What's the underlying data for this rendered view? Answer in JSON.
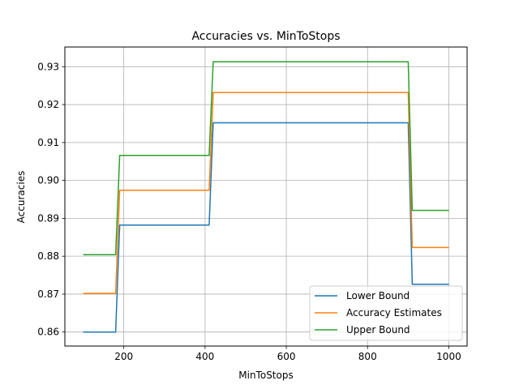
{
  "chart_data": {
    "type": "line",
    "title": "Accuracies vs. MinToStops",
    "xlabel": "MinToStops",
    "ylabel": "Accuracies",
    "xlim": [
      55,
      1045
    ],
    "ylim": [
      0.8563,
      0.9352
    ],
    "xticks": [
      200,
      400,
      600,
      800,
      1000
    ],
    "xtick_labels": [
      "200",
      "400",
      "600",
      "800",
      "1000"
    ],
    "yticks": [
      0.86,
      0.87,
      0.88,
      0.89,
      0.9,
      0.91,
      0.92,
      0.93
    ],
    "ytick_labels": [
      "0.86",
      "0.87",
      "0.88",
      "0.89",
      "0.90",
      "0.91",
      "0.92",
      "0.93"
    ],
    "grid": true,
    "legend_position": "lower-right",
    "x": [
      100,
      180,
      190,
      410,
      420,
      900,
      910,
      1000
    ],
    "series": [
      {
        "name": "Lower Bound",
        "color": "#1f77b4",
        "values": [
          0.86,
          0.86,
          0.8882,
          0.8882,
          0.9152,
          0.9152,
          0.8726,
          0.8726
        ]
      },
      {
        "name": "Accuracy Estimates",
        "color": "#ff7f0e",
        "values": [
          0.8702,
          0.8702,
          0.8974,
          0.8974,
          0.9232,
          0.9232,
          0.8823,
          0.8823
        ]
      },
      {
        "name": "Upper Bound",
        "color": "#2ca02c",
        "values": [
          0.8804,
          0.8804,
          0.9066,
          0.9066,
          0.9313,
          0.9313,
          0.8921,
          0.8921
        ]
      }
    ]
  }
}
